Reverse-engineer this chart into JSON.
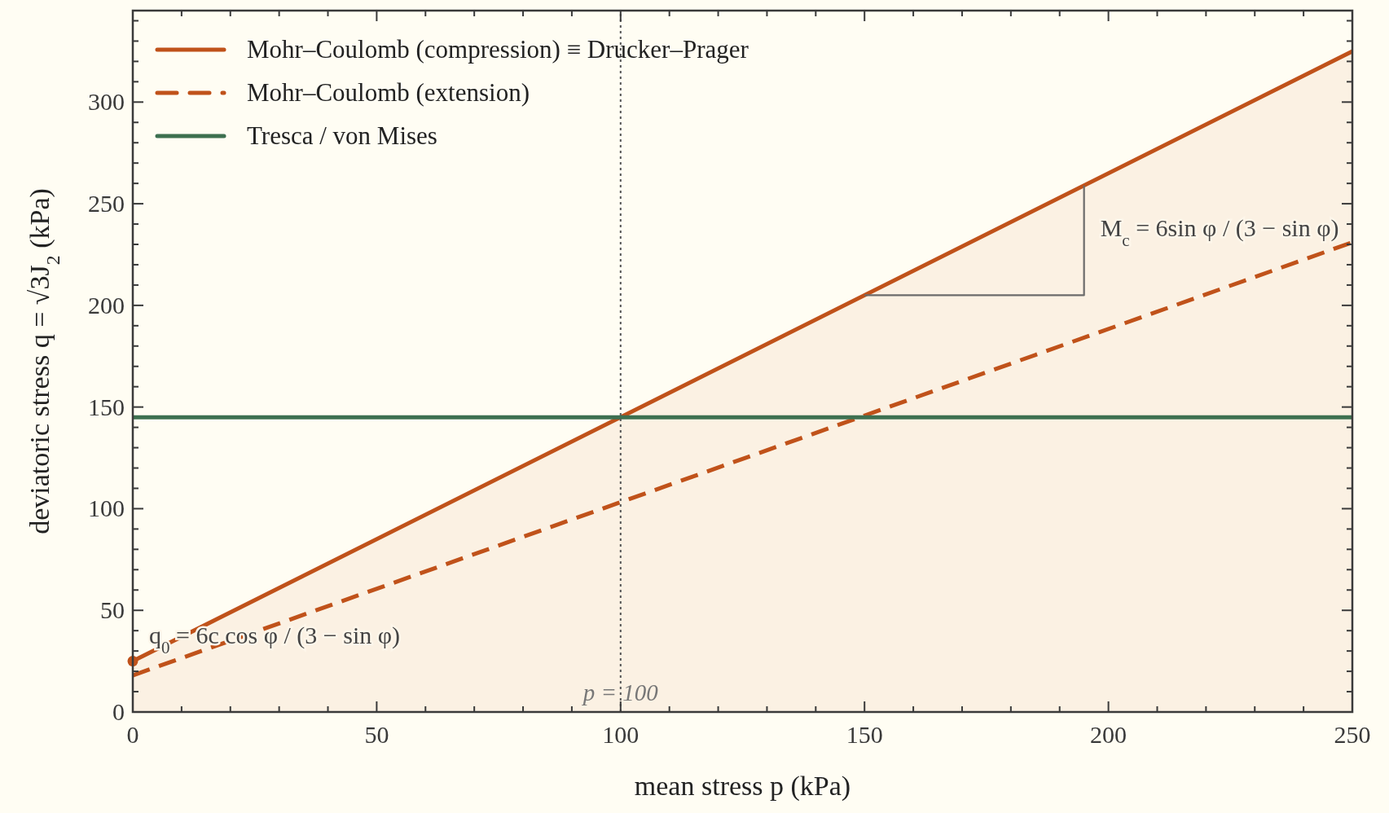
{
  "chart_data": {
    "type": "line",
    "xlabel": "mean stress p (kPa)",
    "ylabel": "deviatoric stress q = √3J$_{2}$ (kPa)",
    "xlim": [
      0,
      250
    ],
    "ylim": [
      0,
      345
    ],
    "xticks": [
      0,
      {
        "value": 10,
        "label": null
      },
      {
        "value": 20,
        "label": null
      },
      {
        "value": 30,
        "label": null
      },
      {
        "value": 40,
        "label": null
      },
      50,
      {
        "value": 60,
        "label": null
      },
      {
        "value": 70,
        "label": null
      },
      {
        "value": 80,
        "label": null
      },
      {
        "value": 90,
        "label": null
      },
      100,
      {
        "value": 110,
        "label": null
      },
      {
        "value": 120,
        "label": null
      },
      {
        "value": 130,
        "label": null
      },
      {
        "value": 140,
        "label": null
      },
      150,
      {
        "value": 160,
        "label": null
      },
      {
        "value": 170,
        "label": null
      },
      {
        "value": 180,
        "label": null
      },
      {
        "value": 190,
        "label": null
      },
      200,
      {
        "value": 210,
        "label": null
      },
      {
        "value": 220,
        "label": null
      },
      {
        "value": 230,
        "label": null
      },
      {
        "value": 240,
        "label": null
      },
      250
    ],
    "yticks": [
      0,
      {
        "value": 10,
        "label": null
      },
      {
        "value": 20,
        "label": null
      },
      {
        "value": 30,
        "label": null
      },
      {
        "value": 40,
        "label": null
      },
      50,
      {
        "value": 60,
        "label": null
      },
      {
        "value": 70,
        "label": null
      },
      {
        "value": 80,
        "label": null
      },
      {
        "value": 90,
        "label": null
      },
      100,
      {
        "value": 110,
        "label": null
      },
      {
        "value": 120,
        "label": null
      },
      {
        "value": 130,
        "label": null
      },
      {
        "value": 140,
        "label": null
      },
      150,
      {
        "value": 160,
        "label": null
      },
      {
        "value": 170,
        "label": null
      },
      {
        "value": 180,
        "label": null
      },
      {
        "value": 190,
        "label": null
      },
      200,
      {
        "value": 210,
        "label": null
      },
      {
        "value": 220,
        "label": null
      },
      {
        "value": 230,
        "label": null
      },
      {
        "value": 240,
        "label": null
      },
      250,
      {
        "value": 260,
        "label": null
      },
      {
        "value": 270,
        "label": null
      },
      {
        "value": 280,
        "label": null
      },
      {
        "value": 290,
        "label": null
      },
      300,
      {
        "value": 310,
        "label": null
      },
      {
        "value": 320,
        "label": null
      },
      {
        "value": 330,
        "label": null
      },
      {
        "value": 340,
        "label": null
      }
    ],
    "grid": false,
    "legend": "top left",
    "series": [
      {
        "name": "Mohr–Coulomb (compression) ≡ Drucker–Prager",
        "type": "area",
        "color": "#c0521a",
        "x": [
          0,
          250
        ],
        "values": [
          25,
          325
        ]
      },
      {
        "name": "Mohr–Coulomb (extension)",
        "line_style": "dashed",
        "color": "#c0521a",
        "x": [
          0,
          250
        ],
        "values": [
          18,
          231
        ]
      },
      {
        "name": "Tresca / von Mises",
        "color": "#3d7050",
        "x": [
          0,
          250
        ],
        "values": [
          145,
          145
        ]
      },
      {
        "color": "#6b6b6b",
        "x": [
          150,
          195,
          195
        ],
        "values": [
          205,
          205,
          259
        ]
      },
      {
        "type": "scatter",
        "marker": "circle",
        "color": "#c0521a",
        "x": [
          0
        ],
        "values": [
          25
        ]
      }
    ],
    "ref_lines": [
      {
        "axis": "x",
        "value": 100,
        "label": "p = 100",
        "line_style": "dotted",
        "color": "#555555"
      }
    ],
    "annotations": [
      {
        "text": "M$_{c}$ = 6sin φ / (3 − sin φ)",
        "x": 195,
        "y": 259
      },
      {
        "text": "q$_{0}$ = 6c cos φ / (3 − sin φ)",
        "x": 0,
        "y": 25
      }
    ]
  }
}
